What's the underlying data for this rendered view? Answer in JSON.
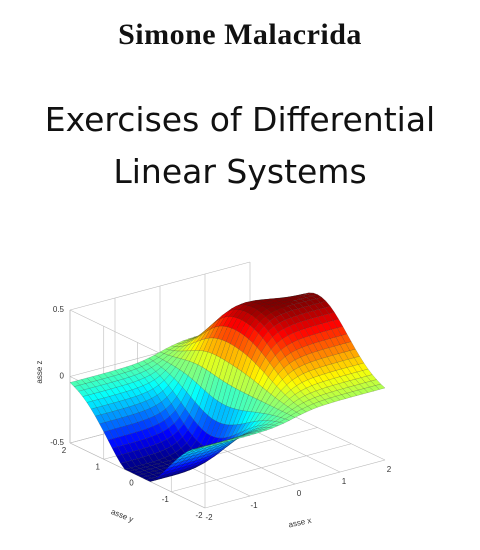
{
  "author": "Simone Malacrida",
  "title_lines": [
    "Exercises of Differential",
    "Linear Systems"
  ],
  "figure": {
    "z_axis_label": "asse z",
    "z_ticks": [
      "0.5",
      "0",
      "-0.5"
    ],
    "y_axis_label": "asse y",
    "y_ticks": [
      "2",
      "1",
      "0",
      "-1",
      "-2"
    ],
    "x_axis_label": "asse x",
    "x_ticks": [
      "-2",
      "-1",
      "0",
      "1",
      "2"
    ]
  }
}
